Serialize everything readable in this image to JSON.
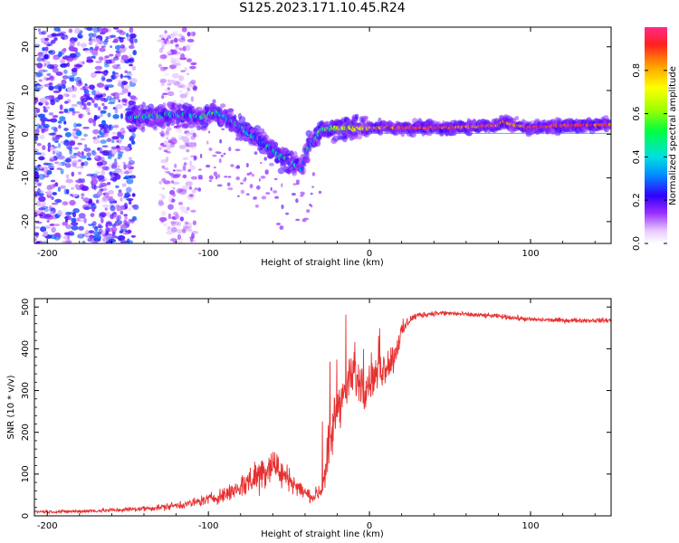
{
  "figure_title": "S125.2023.171.10.45.R24",
  "chart_data": [
    {
      "type": "heatmap",
      "title": "S125.2023.171.10.45.R24",
      "xlabel": "Height of straight line (km)",
      "ylabel": "Frequency (Hz)",
      "xlim": [
        -208,
        150
      ],
      "ylim": [
        -25,
        24.5
      ],
      "xticks": [
        -200,
        -100,
        0,
        100
      ],
      "xtick_labels": [
        "-200",
        "-100",
        "0",
        "100"
      ],
      "yticks": [
        -20,
        -10,
        0,
        10,
        20
      ],
      "ytick_labels": [
        "-20",
        "-10",
        "0",
        "10",
        "20"
      ],
      "colorbar": {
        "label": "Normalized spectral amplitude",
        "ticks": [
          0.0,
          0.2,
          0.4,
          0.6,
          0.8
        ],
        "tick_labels": [
          "0.0",
          "0.2",
          "0.4",
          "0.6",
          "0.8"
        ],
        "range": [
          0,
          1
        ]
      },
      "ridge": {
        "x": [
          -150,
          -140,
          -120,
          -105,
          -95,
          -85,
          -70,
          -55,
          -42,
          -38,
          -30,
          -15,
          0,
          20,
          50,
          80,
          83,
          90,
          100,
          120,
          150
        ],
        "freq": [
          4,
          4,
          4.5,
          4,
          5,
          3,
          -1,
          -5,
          -8,
          -3,
          1,
          1.5,
          1.5,
          1.5,
          1.5,
          2,
          3,
          2,
          1.5,
          2,
          2.2
        ],
        "amplitude": [
          0.3,
          0.4,
          0.4,
          0.4,
          0.5,
          0.35,
          0.4,
          0.4,
          0.35,
          0.4,
          0.6,
          0.7,
          0.8,
          0.95,
          0.95,
          0.9,
          0.95,
          0.85,
          0.95,
          0.95,
          0.95
        ]
      },
      "scatter_regions": [
        {
          "x_from": -208,
          "x_to": -145,
          "freq_from": -25,
          "freq_to": 24.5,
          "amplitude": 0.15
        },
        {
          "x_from": -130,
          "x_to": -108,
          "freq_from": -25,
          "freq_to": 24.5,
          "amplitude": 0.08
        }
      ]
    },
    {
      "type": "line",
      "xlabel": "Height of straight line (km)",
      "ylabel": "SNR (10 * v/v)",
      "xlim": [
        -208,
        150
      ],
      "ylim": [
        0,
        520
      ],
      "xticks": [
        -200,
        -100,
        0,
        100
      ],
      "xtick_labels": [
        "-200",
        "-100",
        "0",
        "100"
      ],
      "yticks": [
        0,
        100,
        200,
        300,
        400,
        500
      ],
      "ytick_labels": [
        "0",
        "100",
        "200",
        "300",
        "400",
        "500"
      ],
      "series": [
        {
          "name": "SNR",
          "color": "#e83030",
          "x": [
            -208,
            -190,
            -170,
            -150,
            -130,
            -120,
            -110,
            -100,
            -90,
            -80,
            -72,
            -65,
            -60,
            -55,
            -50,
            -45,
            -40,
            -35,
            -30,
            -25,
            -20,
            -15,
            -10,
            -5,
            0,
            5,
            10,
            15,
            20,
            25,
            30,
            40,
            50,
            60,
            80,
            100,
            120,
            150
          ],
          "y": [
            10,
            10,
            12,
            15,
            20,
            25,
            30,
            40,
            50,
            70,
            90,
            110,
            130,
            100,
            90,
            70,
            55,
            45,
            60,
            170,
            260,
            300,
            340,
            310,
            320,
            340,
            360,
            380,
            440,
            470,
            480,
            485,
            485,
            482,
            478,
            470,
            468,
            468
          ],
          "noise": [
            4,
            4,
            5,
            6,
            8,
            10,
            12,
            14,
            20,
            30,
            45,
            55,
            50,
            40,
            30,
            22,
            18,
            16,
            25,
            70,
            70,
            60,
            55,
            55,
            45,
            40,
            45,
            40,
            25,
            12,
            8,
            7,
            7,
            6,
            6,
            6,
            6,
            6
          ]
        }
      ]
    }
  ]
}
